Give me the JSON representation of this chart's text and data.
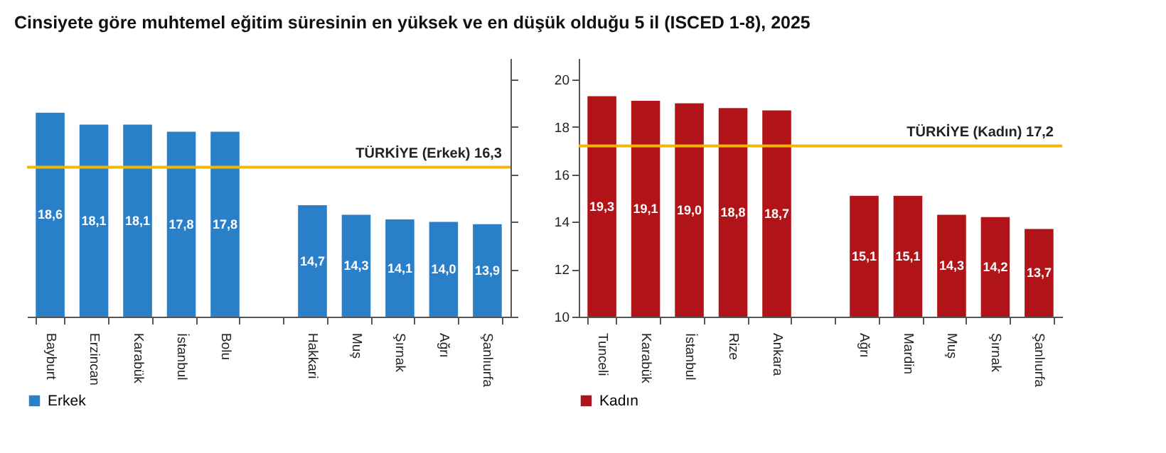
{
  "chart_data": [
    {
      "type": "bar",
      "title": "Cinsiyete göre muhtemel eğitim süresinin en yüksek ve en düşük olduğu 5 il (ISCED 1-8), 2025",
      "categories": [
        "Bayburt",
        "Erzincan",
        "Karabük",
        "İstanbul",
        "Bolu",
        null,
        "Hakkari",
        "Muş",
        "Şırnak",
        "Ağrı",
        "Şanlıurfa"
      ],
      "series": [
        {
          "name": "Erkek",
          "color": "#2a7fc9",
          "values": [
            18.6,
            18.1,
            18.1,
            17.8,
            17.8,
            null,
            14.7,
            14.3,
            14.1,
            14.0,
            13.9
          ]
        }
      ],
      "value_labels": [
        "18,6",
        "18,1",
        "18,1",
        "17,8",
        "17,8",
        null,
        "14,7",
        "14,3",
        "14,1",
        "14,0",
        "13,9"
      ],
      "ylim": [
        10,
        20.9
      ],
      "yticks": [
        10,
        12,
        14,
        16,
        18,
        20
      ],
      "tick_labels": "x",
      "legend": "bottom",
      "grid": false,
      "ref_lines": [
        {
          "axis": "y",
          "value": 16.3,
          "label": "TÜRKİYE (Erkek) 16,3",
          "color": "#f2b705"
        }
      ]
    },
    {
      "type": "bar",
      "categories": [
        "Tunceli",
        "Karabük",
        "İstanbul",
        "Rize",
        "Ankara",
        null,
        "Ağrı",
        "Mardin",
        "Muş",
        "Şırnak",
        "Şanlıurfa"
      ],
      "series": [
        {
          "name": "Kadın",
          "color": "#b01419",
          "values": [
            19.3,
            19.1,
            19.0,
            18.8,
            18.7,
            null,
            15.1,
            15.1,
            14.3,
            14.2,
            13.7
          ]
        }
      ],
      "value_labels": [
        "19,3",
        "19,1",
        "19,0",
        "18,8",
        "18,7",
        null,
        "15,1",
        "15,1",
        "14,3",
        "14,2",
        "13,7"
      ],
      "ylim": [
        10,
        20.9
      ],
      "yticks": [
        10,
        12,
        14,
        16,
        18,
        20
      ],
      "legend": "bottom",
      "grid": false,
      "ref_lines": [
        {
          "axis": "y",
          "value": 17.2,
          "label": "TÜRKİYE (Kadın) 17,2",
          "color": "#f2b705"
        }
      ]
    }
  ]
}
